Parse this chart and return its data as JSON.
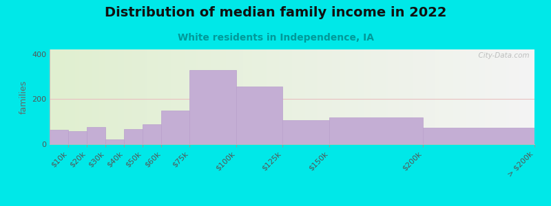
{
  "title": "Distribution of median family income in 2022",
  "subtitle": "White residents in Independence, IA",
  "ylabel": "families",
  "bar_color": "#c4aed4",
  "bar_edgecolor": "#b8a0cc",
  "background_outer": "#00e8e8",
  "background_inner_left": "#e0efd0",
  "background_inner_right": "#f4f4f4",
  "gridline_color": "#e8c0c0",
  "title_fontsize": 14,
  "subtitle_fontsize": 10,
  "ylabel_fontsize": 9,
  "tick_fontsize": 8,
  "ylim": [
    0,
    420
  ],
  "yticks": [
    0,
    200,
    400
  ],
  "watermark": "  City-Data.com",
  "bin_edges": [
    0,
    10,
    20,
    30,
    40,
    50,
    60,
    75,
    100,
    125,
    150,
    200,
    260
  ],
  "bin_labels": [
    "$10k",
    "$20k",
    "$30k",
    "$40k",
    "$50k",
    "$60k",
    "$75k",
    "$100k",
    "$125k",
    "$150k",
    "$200k",
    "> $200k"
  ],
  "values": [
    65,
    58,
    75,
    20,
    68,
    88,
    148,
    330,
    255,
    108,
    120,
    72
  ]
}
